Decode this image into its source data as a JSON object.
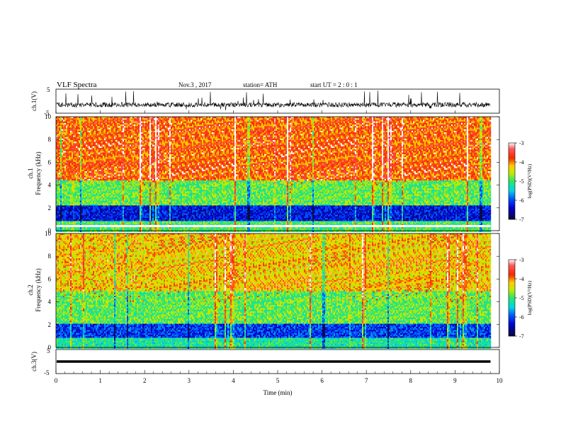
{
  "header": {
    "title": "VLF Spectra",
    "date": "Nov.3 , 2017",
    "station": "station= ATH",
    "start": "start UT = 2 : 0 : 1"
  },
  "chart_data": [
    {
      "type": "line",
      "panel": "channel-1-waveform",
      "ylabel": "ch.1(V)",
      "xlabel": "",
      "xlim": [
        0,
        10
      ],
      "ylim": [
        -5,
        5
      ],
      "y_ticks": [
        "5",
        "-5"
      ],
      "baseline": -1.5,
      "noise_amplitude": 1.0,
      "burst_peak": 5
    },
    {
      "type": "heatmap",
      "panel": "channel-1-spectrogram",
      "ylabel": "Frequency (kHz)",
      "channel_label": "ch.1",
      "xlim": [
        0,
        9.8
      ],
      "ylim": [
        0,
        10
      ],
      "y_ticks": [
        "0",
        "2",
        "4",
        "6",
        "8",
        "10"
      ],
      "colorbar": {
        "label": "log(PSD)(V²/Hz)",
        "range": [
          -7,
          -3
        ],
        "ticks": [
          "-3",
          "-4",
          "-5",
          "-6",
          "-7"
        ]
      }
    },
    {
      "type": "heatmap",
      "panel": "channel-2-spectrogram",
      "ylabel": "Frequency (kHz)",
      "channel_label": "ch.2",
      "xlim": [
        0,
        9.8
      ],
      "ylim": [
        0,
        10
      ],
      "y_ticks": [
        "0",
        "2",
        "4",
        "6",
        "8",
        "10"
      ],
      "colorbar": {
        "label": "log(PSD)(V²/Hz)",
        "range": [
          -7,
          -3
        ],
        "ticks": [
          "-3",
          "-4",
          "-5",
          "-6",
          "-7"
        ]
      }
    },
    {
      "type": "line",
      "panel": "channel-3-waveform",
      "ylabel": "ch.3(V)",
      "xlabel": "Time (min)",
      "xlim": [
        0,
        10
      ],
      "ylim": [
        -5,
        5
      ],
      "y_ticks": [
        "5",
        "-5"
      ],
      "x_ticks": [
        "0",
        "1",
        "2",
        "3",
        "4",
        "5",
        "6",
        "7",
        "8",
        "9",
        "10"
      ],
      "baseline": 0
    }
  ]
}
